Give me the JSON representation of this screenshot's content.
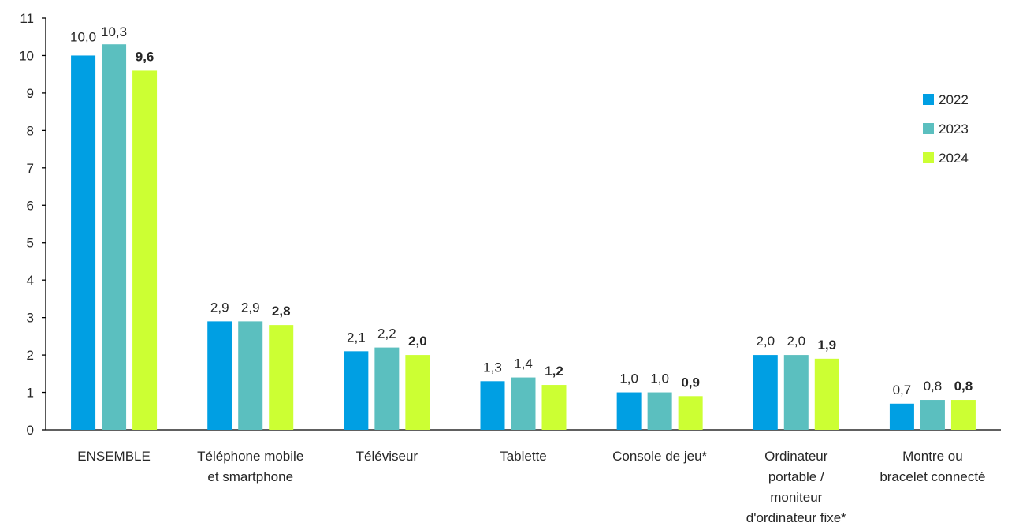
{
  "chart_data": {
    "type": "bar",
    "categories": [
      [
        "ENSEMBLE"
      ],
      [
        "Téléphone mobile",
        "et smartphone"
      ],
      [
        "Téléviseur"
      ],
      [
        "Tablette"
      ],
      [
        "Console de jeu*"
      ],
      [
        "Ordinateur",
        "portable /",
        "moniteur",
        "d'ordinateur fixe*"
      ],
      [
        "Montre ou",
        "bracelet connecté"
      ]
    ],
    "series": [
      {
        "name": "2022",
        "color": "#009fe3",
        "bold_labels": false,
        "values": [
          10.0,
          2.9,
          2.1,
          1.3,
          1.0,
          2.0,
          0.7
        ],
        "labels": [
          "10,0",
          "2,9",
          "2,1",
          "1,3",
          "1,0",
          "2,0",
          "0,7"
        ]
      },
      {
        "name": "2023",
        "color": "#5bbfbf",
        "bold_labels": false,
        "values": [
          10.3,
          2.9,
          2.2,
          1.4,
          1.0,
          2.0,
          0.8
        ],
        "labels": [
          "10,3",
          "2,9",
          "2,2",
          "1,4",
          "1,0",
          "2,0",
          "0,8"
        ]
      },
      {
        "name": "2024",
        "color": "#ccff33",
        "bold_labels": true,
        "values": [
          9.6,
          2.8,
          2.0,
          1.2,
          0.9,
          1.9,
          0.8
        ],
        "labels": [
          "9,6",
          "2,8",
          "2,0",
          "1,2",
          "0,9",
          "1,9",
          "0,8"
        ]
      }
    ],
    "ylim": [
      0,
      11
    ],
    "yticks": [
      0,
      1,
      2,
      3,
      4,
      5,
      6,
      7,
      8,
      9,
      10,
      11
    ],
    "grid": false,
    "legend_position": "right",
    "title": "",
    "xlabel": "",
    "ylabel": ""
  }
}
